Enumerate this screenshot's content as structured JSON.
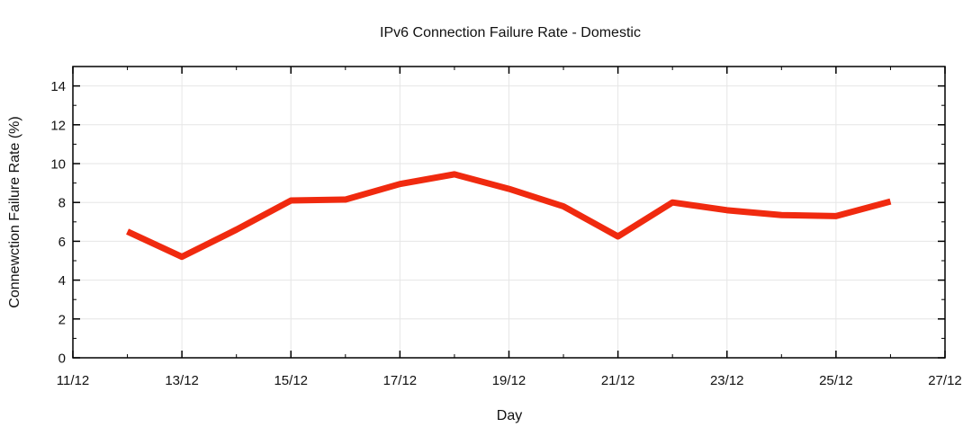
{
  "chart_data": {
    "type": "line",
    "title": "IPv6 Connection Failure Rate - Domestic",
    "xlabel": "Day",
    "ylabel": "Connewction Failure Rate (%)",
    "x_tick_labels": [
      "11/12",
      "13/12",
      "15/12",
      "17/12",
      "19/12",
      "21/12",
      "23/12",
      "25/12",
      "27/12"
    ],
    "y_tick_labels": [
      "0",
      "2",
      "4",
      "6",
      "8",
      "10",
      "12",
      "14"
    ],
    "xlim": [
      "11/12",
      "27/12"
    ],
    "ylim": [
      0,
      15
    ],
    "grid": true,
    "series": [
      {
        "color": "#f02a0f",
        "x": [
          "12/12",
          "13/12",
          "14/12",
          "15/12",
          "16/12",
          "17/12",
          "18/12",
          "19/12",
          "20/12",
          "21/12",
          "22/12",
          "23/12",
          "24/12",
          "25/12",
          "26/12"
        ],
        "values": [
          6.5,
          5.2,
          6.6,
          8.1,
          8.15,
          8.95,
          9.45,
          8.7,
          7.8,
          6.25,
          8.0,
          7.6,
          7.35,
          7.3,
          8.05
        ]
      }
    ]
  }
}
